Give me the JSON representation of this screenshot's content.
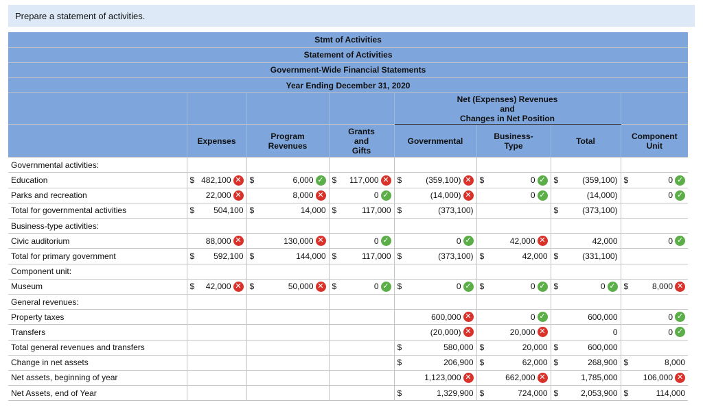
{
  "prompt": "Prepare a statement of activities.",
  "header": {
    "l1": "Stmt of Activities",
    "l2": "Statement of Activities",
    "l3": "Government-Wide Financial Statements",
    "l4": "Year Ending December 31, 2020",
    "net_group": [
      "Net (Expenses) Revenues",
      "and",
      "Changes in Net Position"
    ]
  },
  "columns": {
    "expenses": "Expenses",
    "program": [
      "Program",
      "Revenues"
    ],
    "grants": [
      "Grants",
      "and",
      "Gifts"
    ],
    "governmental": "Governmental",
    "business": [
      "Business-",
      "Type"
    ],
    "total": "Total",
    "component": [
      "Component",
      "Unit"
    ]
  },
  "rows": [
    {
      "label": "Governmental activities:"
    },
    {
      "label": "Education",
      "exp": {
        "d": "$",
        "v": "482,100",
        "m": "x"
      },
      "prog": {
        "d": "$",
        "v": "6,000",
        "m": "c"
      },
      "grant": {
        "d": "$",
        "v": "117,000",
        "m": "x"
      },
      "gov": {
        "d": "$",
        "v": "(359,100)",
        "m": "x"
      },
      "bus": {
        "d": "$",
        "v": "0",
        "m": "c"
      },
      "tot": {
        "d": "$",
        "v": "(359,100)"
      },
      "comp": {
        "d": "$",
        "v": "0",
        "m": "c"
      }
    },
    {
      "label": "Parks and recreation",
      "exp": {
        "v": "22,000",
        "m": "x"
      },
      "prog": {
        "v": "8,000",
        "m": "x"
      },
      "grant": {
        "v": "0",
        "m": "c"
      },
      "gov": {
        "v": "(14,000)",
        "m": "x"
      },
      "bus": {
        "v": "0",
        "m": "c"
      },
      "tot": {
        "v": "(14,000)"
      },
      "comp": {
        "v": "0",
        "m": "c"
      }
    },
    {
      "label": "Total for governmental activities",
      "indent": true,
      "exp": {
        "d": "$",
        "v": "504,100"
      },
      "prog": {
        "d": "$",
        "v": "14,000"
      },
      "grant": {
        "d": "$",
        "v": "117,000"
      },
      "gov": {
        "d": "$",
        "v": "(373,100)"
      },
      "tot": {
        "d": "$",
        "v": "(373,100)"
      }
    },
    {
      "label": "Business-type activities:"
    },
    {
      "label": "Civic auditorium",
      "exp": {
        "v": "88,000",
        "m": "x"
      },
      "prog": {
        "v": "130,000",
        "m": "x"
      },
      "grant": {
        "v": "0",
        "m": "c"
      },
      "gov": {
        "v": "0",
        "m": "c"
      },
      "bus": {
        "v": "42,000",
        "m": "x"
      },
      "tot": {
        "v": "42,000"
      },
      "comp": {
        "v": "0",
        "m": "c"
      }
    },
    {
      "label": "Total for primary government",
      "indent": true,
      "exp": {
        "d": "$",
        "v": "592,100"
      },
      "prog": {
        "d": "$",
        "v": "144,000"
      },
      "grant": {
        "d": "$",
        "v": "117,000"
      },
      "gov": {
        "d": "$",
        "v": "(373,100)"
      },
      "bus": {
        "d": "$",
        "v": "42,000"
      },
      "tot": {
        "d": "$",
        "v": "(331,100)"
      }
    },
    {
      "label": "Component unit:"
    },
    {
      "label": "Museum",
      "exp": {
        "d": "$",
        "v": "42,000",
        "m": "x"
      },
      "prog": {
        "d": "$",
        "v": "50,000",
        "m": "x"
      },
      "grant": {
        "d": "$",
        "v": "0",
        "m": "c"
      },
      "gov": {
        "d": "$",
        "v": "0",
        "m": "c"
      },
      "bus": {
        "d": "$",
        "v": "0",
        "m": "c"
      },
      "tot": {
        "d": "$",
        "v": "0",
        "m": "c"
      },
      "comp": {
        "d": "$",
        "v": "8,000",
        "m": "x"
      }
    },
    {
      "label": "General revenues:"
    },
    {
      "label": "Property taxes",
      "gov": {
        "v": "600,000",
        "m": "x"
      },
      "bus": {
        "v": "0",
        "m": "c"
      },
      "tot": {
        "v": "600,000"
      },
      "comp": {
        "v": "0",
        "m": "c"
      }
    },
    {
      "label": "Transfers",
      "gov": {
        "v": "(20,000)",
        "m": "x"
      },
      "bus": {
        "v": "20,000",
        "m": "x"
      },
      "tot": {
        "v": "0"
      },
      "comp": {
        "v": "0",
        "m": "c"
      }
    },
    {
      "label": "Total general revenues and transfers",
      "indent": true,
      "gov": {
        "d": "$",
        "v": "580,000"
      },
      "bus": {
        "d": "$",
        "v": "20,000"
      },
      "tot": {
        "d": "$",
        "v": "600,000"
      }
    },
    {
      "label": "Change in net assets",
      "gov": {
        "d": "$",
        "v": "206,900"
      },
      "bus": {
        "d": "$",
        "v": "62,000"
      },
      "tot": {
        "d": "$",
        "v": "268,900"
      },
      "comp": {
        "d": "$",
        "v": "8,000"
      }
    },
    {
      "label": "Net assets, beginning of year",
      "gov": {
        "v": "1,123,000",
        "m": "x"
      },
      "bus": {
        "v": "662,000",
        "m": "x"
      },
      "tot": {
        "v": "1,785,000"
      },
      "comp": {
        "v": "106,000",
        "m": "x"
      }
    },
    {
      "label": "Net Assets, end of Year",
      "gov": {
        "d": "$",
        "v": "1,329,900"
      },
      "bus": {
        "d": "$",
        "v": "724,000"
      },
      "tot": {
        "d": "$",
        "v": "2,053,900"
      },
      "comp": {
        "d": "$",
        "v": "114,000"
      }
    }
  ],
  "marks": {
    "x": "✕",
    "c": "✓"
  },
  "colors": {
    "header_bg": "#7fa6dc",
    "prompt_bg": "#dde9f6",
    "incorrect": "#d9322b",
    "correct": "#5cae48"
  }
}
